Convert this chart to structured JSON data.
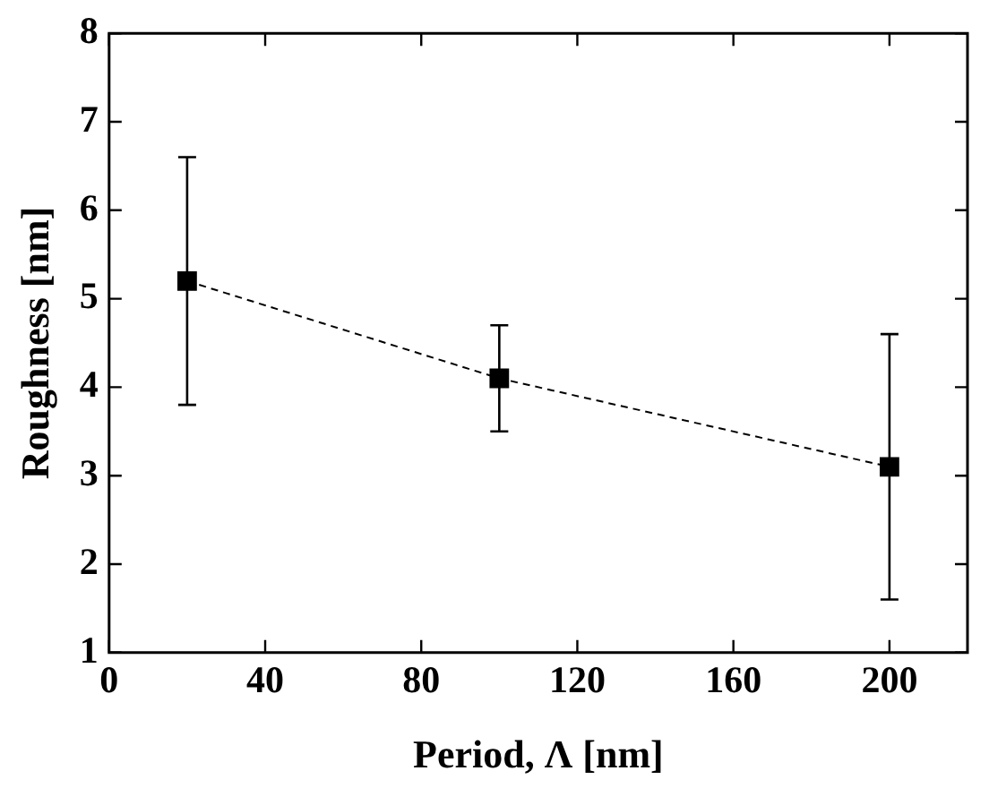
{
  "chart_data": {
    "type": "line",
    "xlabel": "Period, Λ [nm]",
    "ylabel": "Roughness [nm]",
    "x": [
      20,
      100,
      200
    ],
    "series": [
      {
        "color": "#000000",
        "values": [
          5.2,
          4.1,
          3.1
        ],
        "errors": [
          [
            3.8,
            6.6
          ],
          [
            3.5,
            4.7
          ],
          [
            1.6,
            4.6
          ]
        ]
      }
    ],
    "xlim": [
      0,
      220
    ],
    "xticks": [
      0,
      40,
      80,
      120,
      160,
      200
    ],
    "ylim": [
      1,
      8
    ],
    "yticks": [
      1,
      2,
      3,
      4,
      5,
      6,
      7,
      8
    ],
    "marker": "square",
    "line_style": "dashed",
    "legend": false
  }
}
